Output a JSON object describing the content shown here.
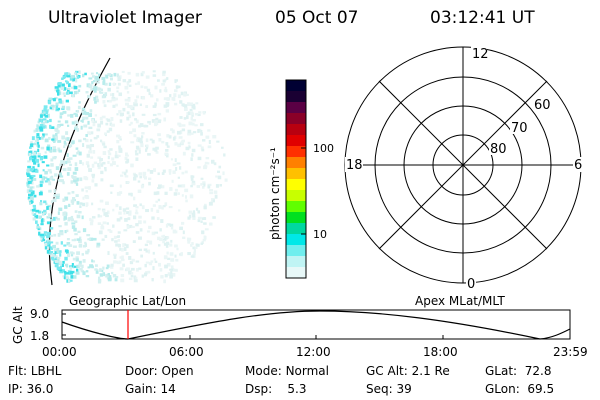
{
  "header": {
    "title": "Ultraviolet Imager",
    "date": "05 Oct 07",
    "time": "03:12:41 UT"
  },
  "colorbar": {
    "unit_label": "photon cm⁻²s⁻¹",
    "ticks": [
      "100",
      "10"
    ],
    "colors": [
      "#000033",
      "#1a0033",
      "#5a0044",
      "#8a0028",
      "#b80010",
      "#e00000",
      "#ff3000",
      "#ff8000",
      "#ffc000",
      "#ffff00",
      "#c8ff00",
      "#60ff00",
      "#00e020",
      "#00d8a0",
      "#00e8e8",
      "#70eeee",
      "#c0f4f4",
      "#e8f8f8"
    ]
  },
  "polar": {
    "clock_labels": [
      "12",
      "18",
      "6",
      "0"
    ],
    "lat_labels": [
      "60",
      "70",
      "80"
    ]
  },
  "timeline": {
    "ylabel": "GC Alt",
    "y_ticks": [
      "9.0",
      "1.8"
    ],
    "left_title": "Geographic Lat/Lon",
    "right_title": "Apex MLat/MLT",
    "x_ticks": [
      "00:00",
      "06:00",
      "12:00",
      "18:00",
      "23:59"
    ],
    "marker_color": "#ff0000"
  },
  "status": [
    [
      {
        "label": "Flt:",
        "value": "LBHL"
      },
      {
        "label": "Door:",
        "value": "Open"
      },
      {
        "label": "Mode:",
        "value": "Normal"
      },
      {
        "label": "GC Alt:",
        "value": "2.1 Re"
      },
      {
        "label": "GLat:",
        "value": "72.8"
      }
    ],
    [
      {
        "label": "IP:",
        "value": "36.0"
      },
      {
        "label": "Gain:",
        "value": "14"
      },
      {
        "label": "Dsp:",
        "value": "5.3"
      },
      {
        "label": "Seq:",
        "value": "39"
      },
      {
        "label": "GLon:",
        "value": "69.5"
      }
    ]
  ]
}
